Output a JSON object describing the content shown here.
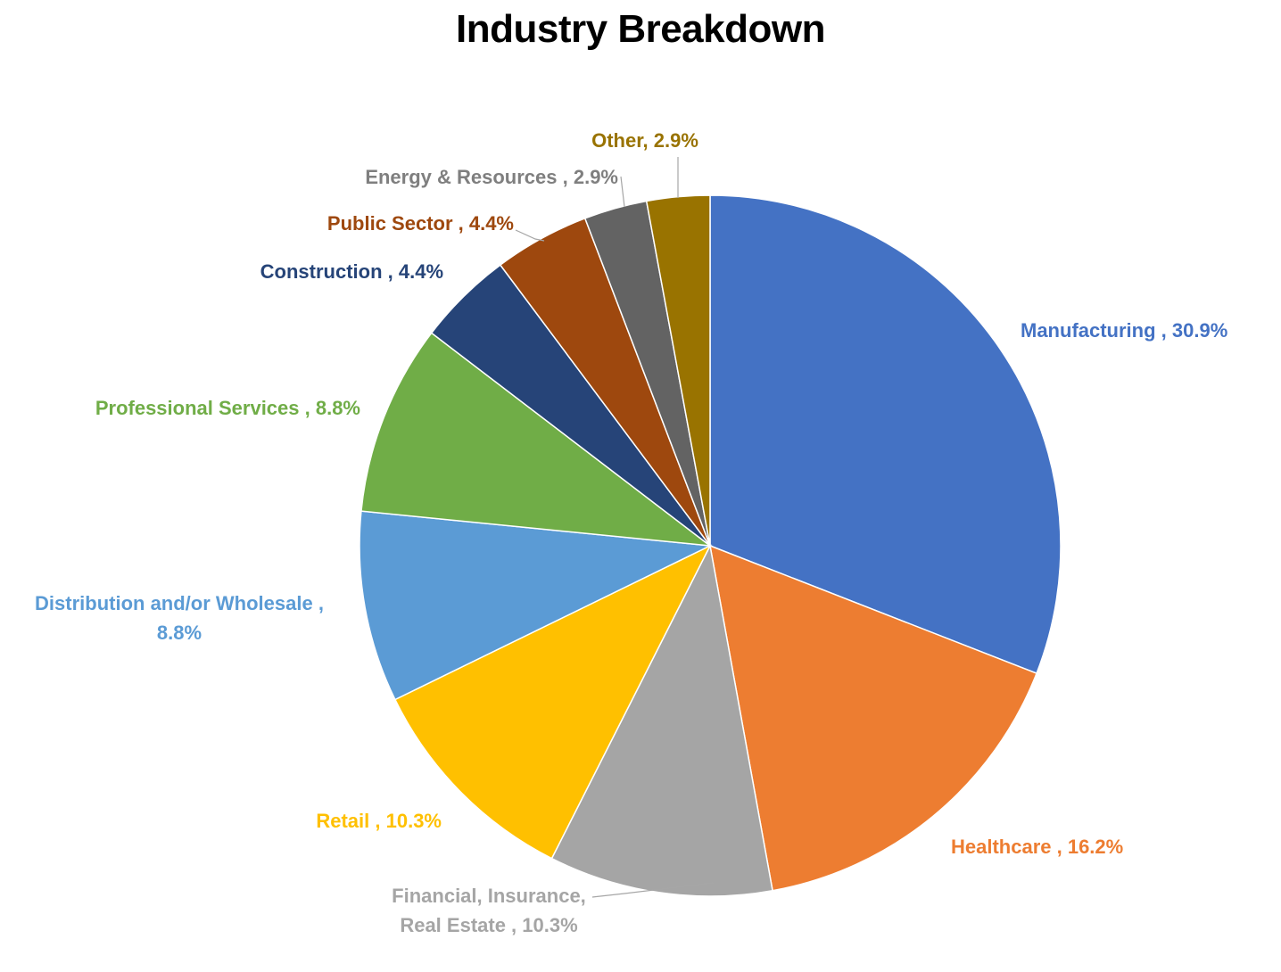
{
  "chart_data": {
    "type": "pie",
    "title": "Industry Breakdown",
    "slices": [
      {
        "name": "Manufacturing",
        "value": 30.9,
        "label": [
          "Manufacturing , 30.9%"
        ],
        "color": "#4472C4"
      },
      {
        "name": "Healthcare",
        "value": 16.2,
        "label": [
          "Healthcare , 16.2%"
        ],
        "color": "#ED7D31"
      },
      {
        "name": "Financial, Insurance, Real Estate",
        "value": 10.3,
        "label": [
          "Financial, Insurance,",
          "Real Estate , 10.3%"
        ],
        "color": "#A5A5A5"
      },
      {
        "name": "Retail",
        "value": 10.3,
        "label": [
          "Retail , 10.3%"
        ],
        "color": "#FFC000"
      },
      {
        "name": "Distribution and/or Wholesale",
        "value": 8.8,
        "label": [
          "Distribution and/or Wholesale ,",
          "8.8%"
        ],
        "color": "#5B9BD5"
      },
      {
        "name": "Professional Services",
        "value": 8.8,
        "label": [
          "Professional Services , 8.8%"
        ],
        "color": "#70AD47"
      },
      {
        "name": "Construction",
        "value": 4.4,
        "label": [
          "Construction , 4.4%"
        ],
        "color": "#264478"
      },
      {
        "name": "Public Sector",
        "value": 4.4,
        "label": [
          "Public Sector , 4.4%"
        ],
        "color": "#9E480E"
      },
      {
        "name": "Energy & Resources",
        "value": 2.9,
        "label": [
          "Energy & Resources , 2.9%"
        ],
        "color": "#636363"
      },
      {
        "name": "Other",
        "value": 2.9,
        "label": [
          "Other, 2.9%"
        ],
        "color": "#997300"
      }
    ],
    "label_colors": {
      "Financial, Insurance, Real Estate": "#A5A5A5",
      "Energy & Resources": "#7F7F7F"
    },
    "start_angle_deg": 0,
    "direction": "clockwise",
    "leader_lines": [
      "Other",
      "Energy & Resources",
      "Public Sector",
      "Financial, Insurance, Real Estate"
    ]
  }
}
